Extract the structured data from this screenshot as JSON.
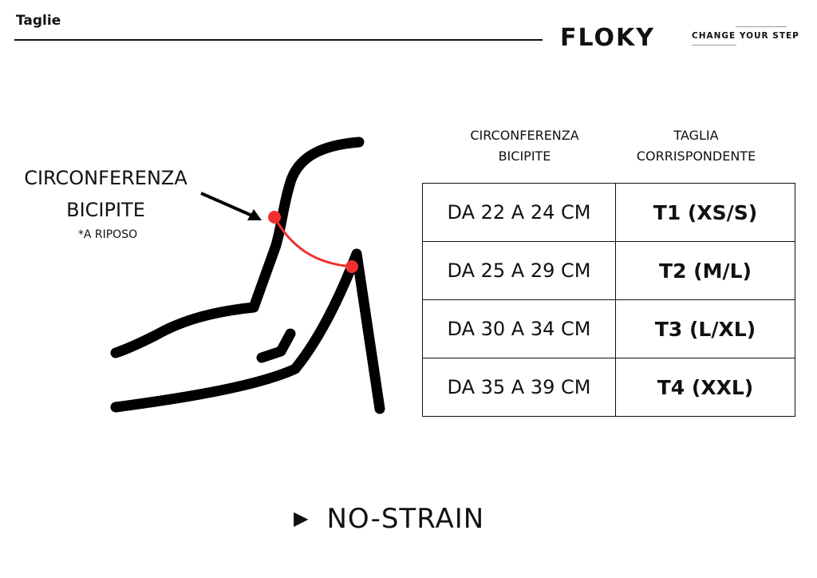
{
  "header": {
    "title": "Taglie",
    "logo_text": "FLOKY",
    "tagline": "CHANGE YOUR STEP"
  },
  "diagram": {
    "measure_label_line1": "CIRCONFERENZA",
    "measure_label_line2": "BICIPITE",
    "note": "*A RIPOSO",
    "accent_color": "#f03030"
  },
  "table": {
    "headers": [
      [
        "CIRCONFERENZA",
        "BICIPITE"
      ],
      [
        "TAGLIA",
        "CORRISPONDENTE"
      ]
    ],
    "rows": [
      {
        "range": "DA 22 A 24 CM",
        "size": "T1 (XS/S)"
      },
      {
        "range": "DA 25 A 29 CM",
        "size": "T2 (M/L)"
      },
      {
        "range": "DA 30 A 34 CM",
        "size": "T3 (L/XL)"
      },
      {
        "range": "DA 35 A 39 CM",
        "size": "T4 (XXL)"
      }
    ]
  },
  "footer": {
    "product": "NO-STRAIN",
    "bullet_icon": "triangle-right"
  }
}
